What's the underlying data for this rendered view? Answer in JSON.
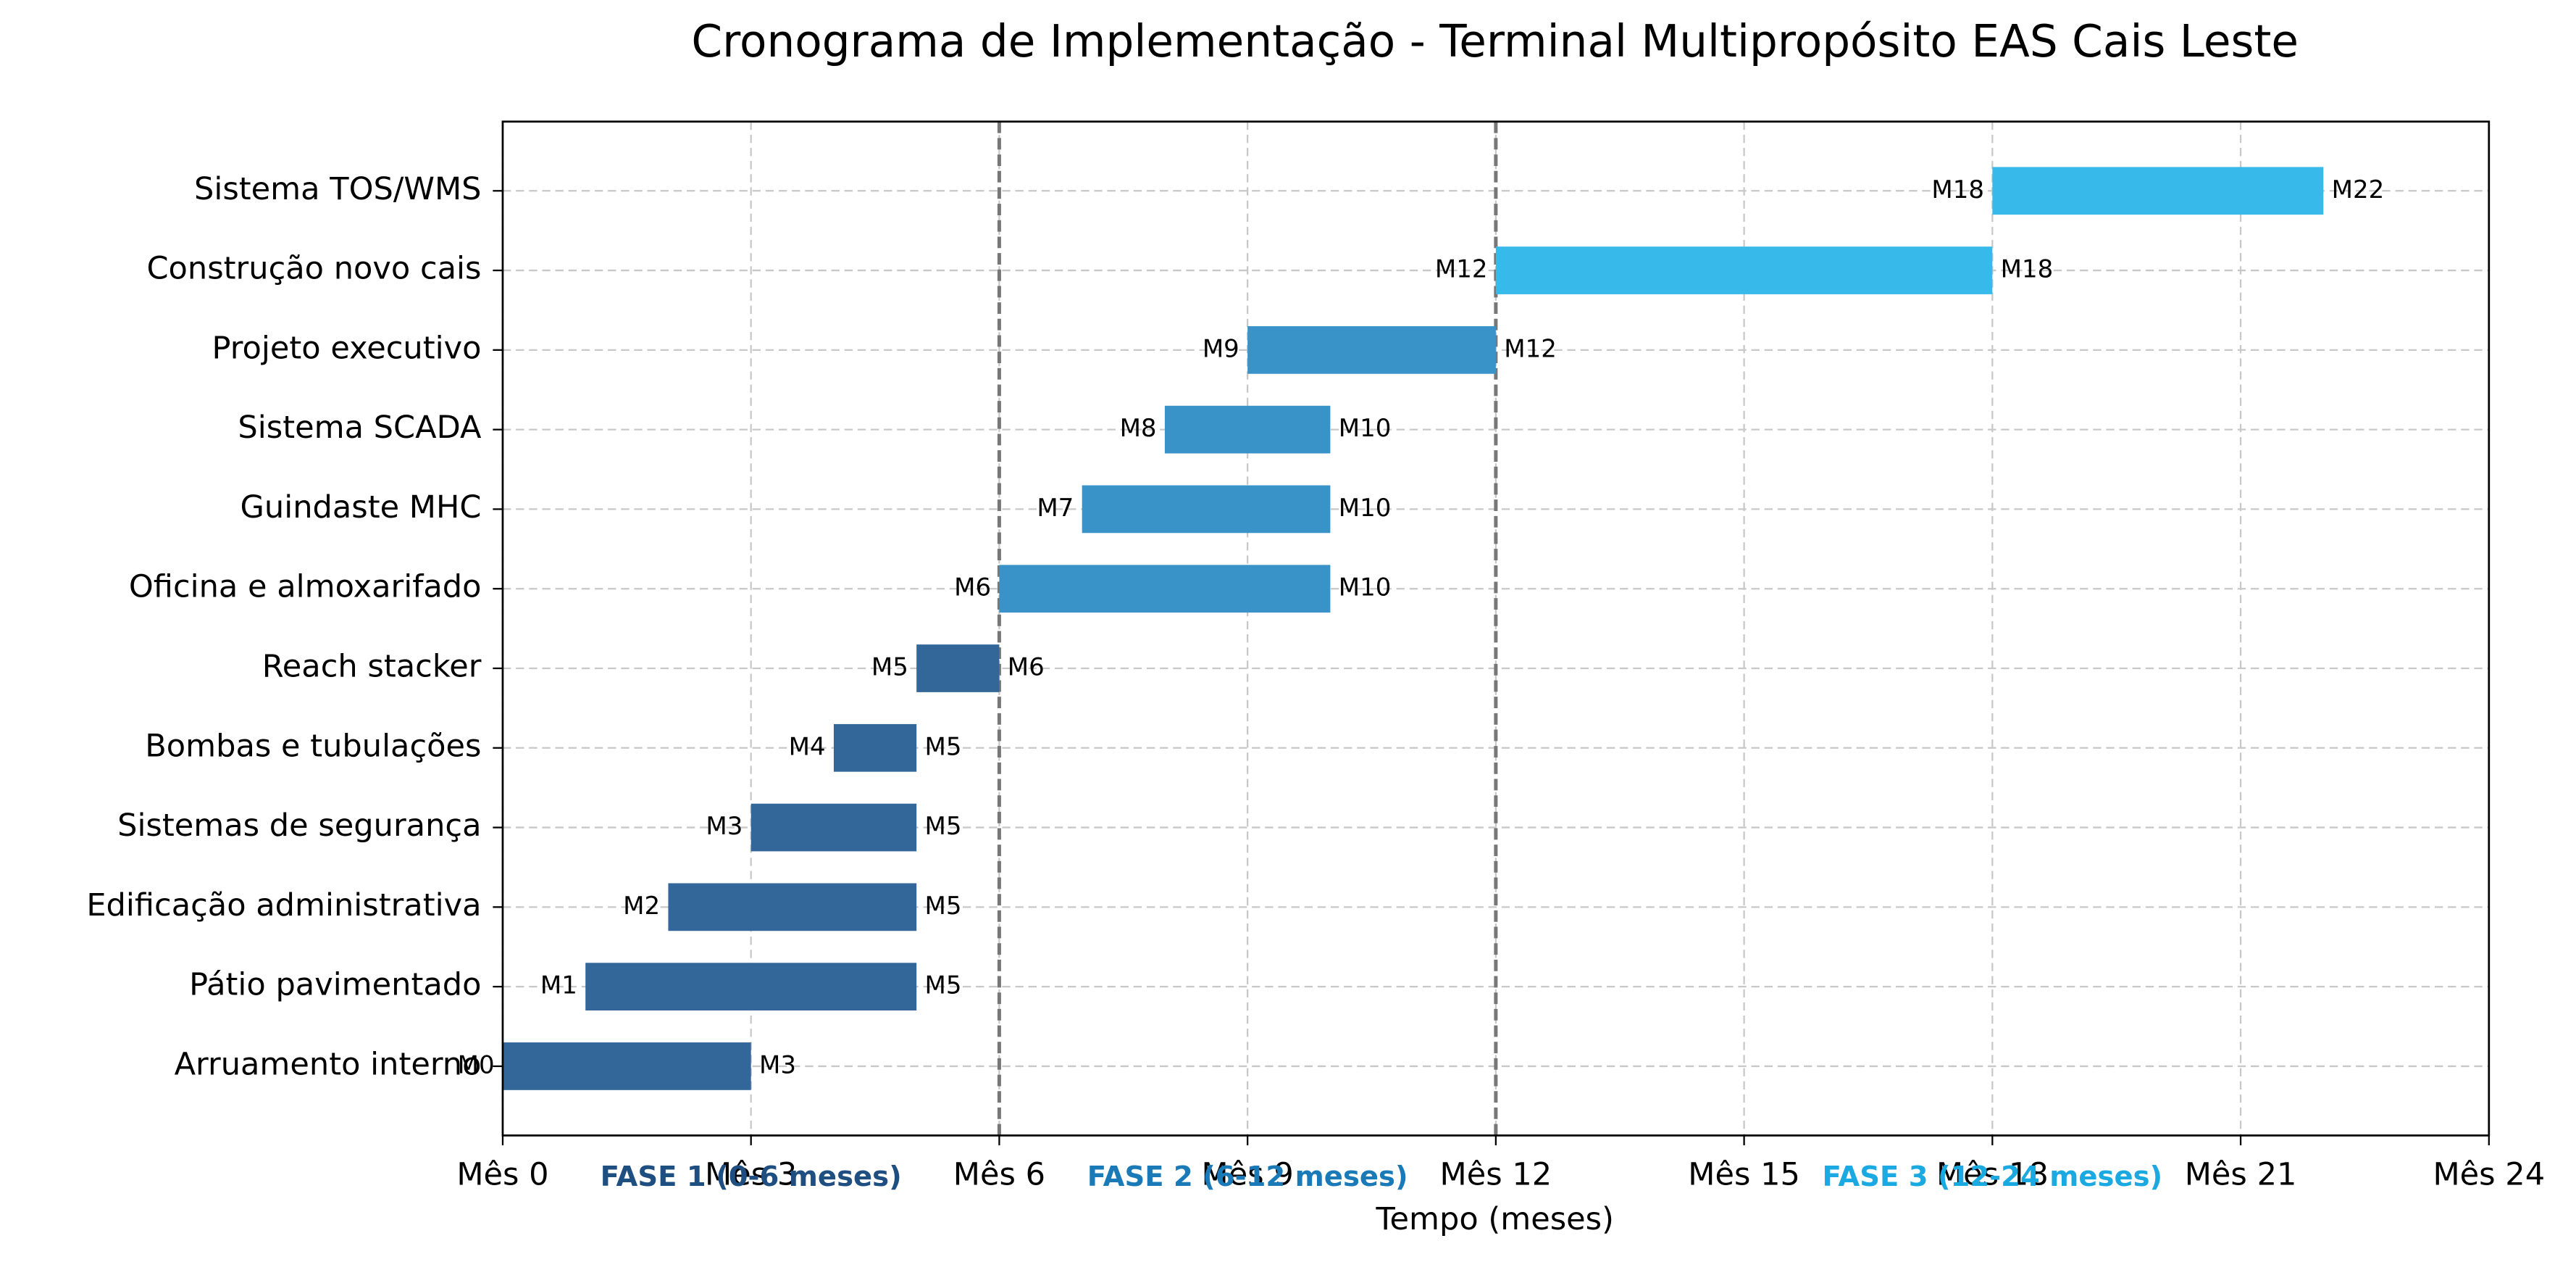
{
  "chart_data": {
    "type": "gantt",
    "title": "Cronograma de Implementação - Terminal Multipropósito EAS Cais Leste",
    "x_label": "Tempo (meses)",
    "categories": [
      "Arruamento interno",
      "Pátio pavimentado",
      "Edificação administrativa",
      "Sistemas de segurança",
      "Bombas e tubulações",
      "Reach stacker",
      "Oficina e almoxarifado",
      "Guindaste MHC",
      "Sistema SCADA",
      "Projeto executivo",
      "Construção novo cais",
      "Sistema TOS/WMS"
    ],
    "start": [
      0,
      1,
      2,
      3,
      4,
      5,
      6,
      7,
      8,
      9,
      12,
      18
    ],
    "end": [
      3,
      5,
      5,
      5,
      5,
      6,
      10,
      10,
      10,
      12,
      18,
      22
    ],
    "start_labels": [
      "M0",
      "M1",
      "M2",
      "M3",
      "M4",
      "M5",
      "M6",
      "M7",
      "M8",
      "M9",
      "M12",
      "M18"
    ],
    "end_labels": [
      "M3",
      "M5",
      "M5",
      "M5",
      "M5",
      "M6",
      "M10",
      "M10",
      "M10",
      "M12",
      "M18",
      "M22"
    ],
    "colors": [
      "#336699",
      "#336699",
      "#336699",
      "#336699",
      "#336699",
      "#336699",
      "#3a93c8",
      "#3a93c8",
      "#3a93c8",
      "#3a93c8",
      "#37b9ea",
      "#37b9ea"
    ],
    "xlim": [
      0,
      24
    ],
    "xticks": [
      {
        "value": 0,
        "label": "Mês 0"
      },
      {
        "value": 3,
        "label": "Mês 3"
      },
      {
        "value": 6,
        "label": "Mês 6"
      },
      {
        "value": 9,
        "label": "Mês 9"
      },
      {
        "value": 12,
        "label": "Mês 12"
      },
      {
        "value": 15,
        "label": "Mês 15"
      },
      {
        "value": 18,
        "label": "Mês 18"
      },
      {
        "value": 21,
        "label": "Mês 21"
      },
      {
        "value": 24,
        "label": "Mês 24"
      }
    ],
    "phases": [
      {
        "label": "FASE 1 (0-6 meses)",
        "start": 0,
        "end": 6,
        "color": "#1f4e80"
      },
      {
        "label": "FASE 2 (6-12 meses)",
        "start": 6,
        "end": 12,
        "color": "#1a7ab8"
      },
      {
        "label": "FASE 3 (12-24 meses)",
        "start": 12,
        "end": 24,
        "color": "#1aa9e0"
      }
    ],
    "phase_dividers": [
      6,
      12
    ],
    "grid": true
  }
}
